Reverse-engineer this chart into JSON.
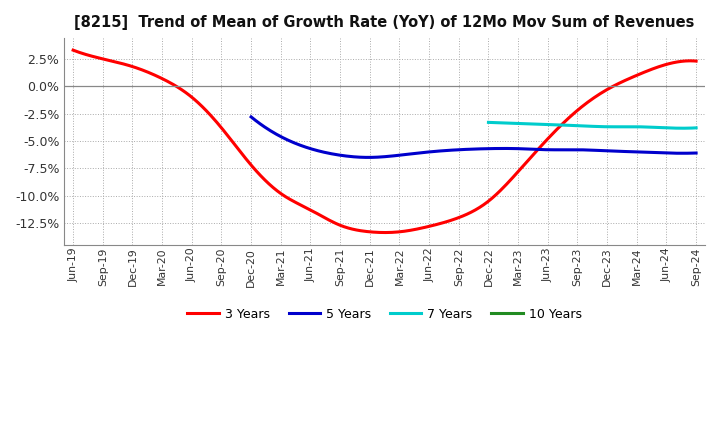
{
  "title": "[8215]  Trend of Mean of Growth Rate (YoY) of 12Mo Mov Sum of Revenues",
  "background_color": "#ffffff",
  "ylim": [
    -0.145,
    0.044
  ],
  "ytick_vals": [
    0.025,
    0.0,
    -0.025,
    -0.05,
    -0.075,
    -0.1,
    -0.125
  ],
  "series": {
    "3 Years": {
      "color": "#ff0000",
      "linewidth": 2.2,
      "x": [
        0,
        1,
        2,
        3,
        4,
        5,
        6,
        7,
        8,
        9,
        10,
        11,
        12,
        13,
        14,
        15,
        16,
        17,
        18,
        19,
        20,
        21
      ],
      "y": [
        0.033,
        0.025,
        0.018,
        0.007,
        -0.01,
        -0.038,
        -0.072,
        -0.098,
        -0.113,
        -0.127,
        -0.133,
        -0.133,
        -0.128,
        -0.12,
        -0.105,
        -0.078,
        -0.048,
        -0.022,
        -0.003,
        0.01,
        0.02,
        0.023
      ]
    },
    "5 Years": {
      "color": "#0000cc",
      "linewidth": 2.2,
      "x": [
        6,
        7,
        8,
        9,
        10,
        11,
        12,
        13,
        14,
        15,
        16,
        17,
        18,
        19,
        20,
        21
      ],
      "y": [
        -0.028,
        -0.046,
        -0.057,
        -0.063,
        -0.065,
        -0.063,
        -0.06,
        -0.058,
        -0.057,
        -0.057,
        -0.058,
        -0.058,
        -0.059,
        -0.06,
        -0.061,
        -0.061
      ]
    },
    "7 Years": {
      "color": "#00cccc",
      "linewidth": 2.2,
      "x": [
        14,
        15,
        16,
        17,
        18,
        19,
        20,
        21
      ],
      "y": [
        -0.033,
        -0.034,
        -0.035,
        -0.036,
        -0.037,
        -0.037,
        -0.038,
        -0.038
      ]
    },
    "10 Years": {
      "color": "#228B22",
      "linewidth": 2.2,
      "x": [],
      "y": []
    }
  },
  "xtick_labels": [
    "Jun-19",
    "Sep-19",
    "Dec-19",
    "Mar-20",
    "Jun-20",
    "Sep-20",
    "Dec-20",
    "Mar-21",
    "Jun-21",
    "Sep-21",
    "Dec-21",
    "Mar-22",
    "Jun-22",
    "Sep-22",
    "Dec-22",
    "Mar-23",
    "Jun-23",
    "Sep-23",
    "Dec-23",
    "Mar-24",
    "Jun-24",
    "Sep-24"
  ],
  "legend": [
    {
      "label": "3 Years",
      "color": "#ff0000"
    },
    {
      "label": "5 Years",
      "color": "#0000cc"
    },
    {
      "label": "7 Years",
      "color": "#00cccc"
    },
    {
      "label": "10 Years",
      "color": "#228B22"
    }
  ]
}
